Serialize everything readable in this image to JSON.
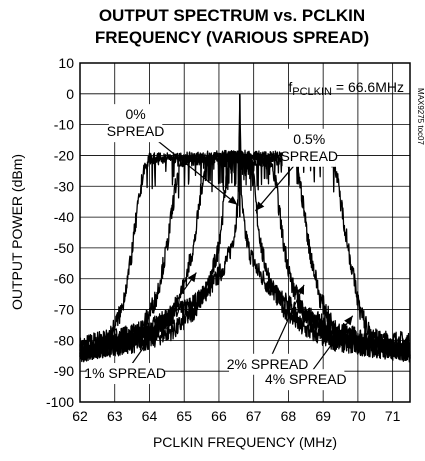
{
  "chart_data": {
    "type": "line",
    "title": [
      "OUTPUT SPECTRUM vs. PCLKIN",
      "FREQUENCY (VARIOUS SPREAD)"
    ],
    "xlabel": "PCLKIN FREQUENCY (MHz)",
    "ylabel": "OUTPUT POWER (dBm)",
    "xlim": [
      62,
      71.5
    ],
    "ylim": [
      -100,
      10
    ],
    "xticks": [
      "62",
      "63",
      "64",
      "65",
      "66",
      "67",
      "68",
      "69",
      "70",
      "71"
    ],
    "yticks": [
      "10",
      "0",
      "-10",
      "-20",
      "-30",
      "-40",
      "-50",
      "-60",
      "-70",
      "-80",
      "-90",
      "-100"
    ],
    "grid": true,
    "fclk_label": {
      "prefix": "f",
      "sub": "PCLKIN",
      "suffix": " = 66.6MHz"
    },
    "code": "MAX9275 toc07",
    "center_mhz": 66.6,
    "series": [
      {
        "name": "0% SPREAD",
        "points": [
          [
            62,
            -82
          ],
          [
            62.5,
            -80
          ],
          [
            63,
            -79
          ],
          [
            63.5,
            -78
          ],
          [
            64,
            -76
          ],
          [
            64.5,
            -73
          ],
          [
            65,
            -70
          ],
          [
            65.5,
            -66
          ],
          [
            65.8,
            -62
          ],
          [
            66.1,
            -57
          ],
          [
            66.3,
            -52
          ],
          [
            66.45,
            -45
          ],
          [
            66.55,
            -35
          ],
          [
            66.6,
            0
          ],
          [
            66.65,
            -35
          ],
          [
            66.75,
            -45
          ],
          [
            66.9,
            -52
          ],
          [
            67.1,
            -57
          ],
          [
            67.4,
            -62
          ],
          [
            67.7,
            -66
          ],
          [
            68.2,
            -70
          ],
          [
            68.7,
            -73
          ],
          [
            69.2,
            -76
          ],
          [
            69.7,
            -78
          ],
          [
            70.2,
            -79
          ],
          [
            70.7,
            -80
          ],
          [
            71.2,
            -80
          ],
          [
            71.5,
            -81
          ]
        ]
      },
      {
        "name": "0.5% SPREAD",
        "points": [
          [
            62,
            -84
          ],
          [
            63,
            -82
          ],
          [
            64,
            -80
          ],
          [
            64.8,
            -76
          ],
          [
            65.3,
            -70
          ],
          [
            65.7,
            -62
          ],
          [
            65.95,
            -52
          ],
          [
            66.1,
            -40
          ],
          [
            66.2,
            -28
          ],
          [
            66.3,
            -22
          ],
          [
            66.6,
            -20
          ],
          [
            66.9,
            -22
          ],
          [
            67.0,
            -28
          ],
          [
            67.1,
            -40
          ],
          [
            67.25,
            -52
          ],
          [
            67.5,
            -62
          ],
          [
            67.9,
            -70
          ],
          [
            68.4,
            -76
          ],
          [
            69.2,
            -80
          ],
          [
            70.2,
            -82
          ],
          [
            71.5,
            -83
          ]
        ]
      },
      {
        "name": "1% SPREAD",
        "points": [
          [
            62,
            -84
          ],
          [
            63,
            -82
          ],
          [
            64,
            -78
          ],
          [
            64.6,
            -72
          ],
          [
            65.0,
            -62
          ],
          [
            65.3,
            -48
          ],
          [
            65.5,
            -30
          ],
          [
            65.65,
            -22
          ],
          [
            66.6,
            -21
          ],
          [
            67.5,
            -22
          ],
          [
            67.65,
            -30
          ],
          [
            67.85,
            -48
          ],
          [
            68.1,
            -62
          ],
          [
            68.5,
            -72
          ],
          [
            69.1,
            -78
          ],
          [
            70.1,
            -82
          ],
          [
            71.5,
            -84
          ]
        ]
      },
      {
        "name": "2% SPREAD",
        "points": [
          [
            62,
            -84
          ],
          [
            63,
            -81
          ],
          [
            63.8,
            -76
          ],
          [
            64.2,
            -66
          ],
          [
            64.5,
            -50
          ],
          [
            64.75,
            -30
          ],
          [
            64.9,
            -22
          ],
          [
            66.6,
            -20
          ],
          [
            68.2,
            -22
          ],
          [
            68.35,
            -30
          ],
          [
            68.6,
            -50
          ],
          [
            68.9,
            -66
          ],
          [
            69.3,
            -76
          ],
          [
            70.1,
            -81
          ],
          [
            71.5,
            -84
          ]
        ]
      },
      {
        "name": "4% SPREAD",
        "points": [
          [
            62,
            -84
          ],
          [
            62.5,
            -82
          ],
          [
            62.9,
            -78
          ],
          [
            63.2,
            -70
          ],
          [
            63.45,
            -55
          ],
          [
            63.65,
            -38
          ],
          [
            63.85,
            -24
          ],
          [
            64.0,
            -21
          ],
          [
            66.6,
            -20
          ],
          [
            69.2,
            -21
          ],
          [
            69.35,
            -24
          ],
          [
            69.55,
            -38
          ],
          [
            69.8,
            -55
          ],
          [
            70.05,
            -70
          ],
          [
            70.35,
            -78
          ],
          [
            70.8,
            -82
          ],
          [
            71.5,
            -84
          ]
        ]
      }
    ],
    "annotations": [
      {
        "lines": [
          "0%",
          "SPREAD"
        ],
        "tx": 63.6,
        "ty": -4,
        "ax": 66.53,
        "ay": -36
      },
      {
        "lines": [
          "0.5%",
          "SPREAD"
        ],
        "tx": 68.6,
        "ty": -12,
        "ax": 67.05,
        "ay": -38
      },
      {
        "lines": [
          "1% SPREAD"
        ],
        "tx": 63.3,
        "ty": -88,
        "ax": 65.35,
        "ay": -58
      },
      {
        "lines": [
          "2% SPREAD"
        ],
        "tx": 67.4,
        "ty": -85,
        "ax": 68.45,
        "ay": -62
      },
      {
        "lines": [
          "4% SPREAD"
        ],
        "tx": 68.5,
        "ty": -90,
        "ax": 69.85,
        "ay": -72
      }
    ]
  }
}
